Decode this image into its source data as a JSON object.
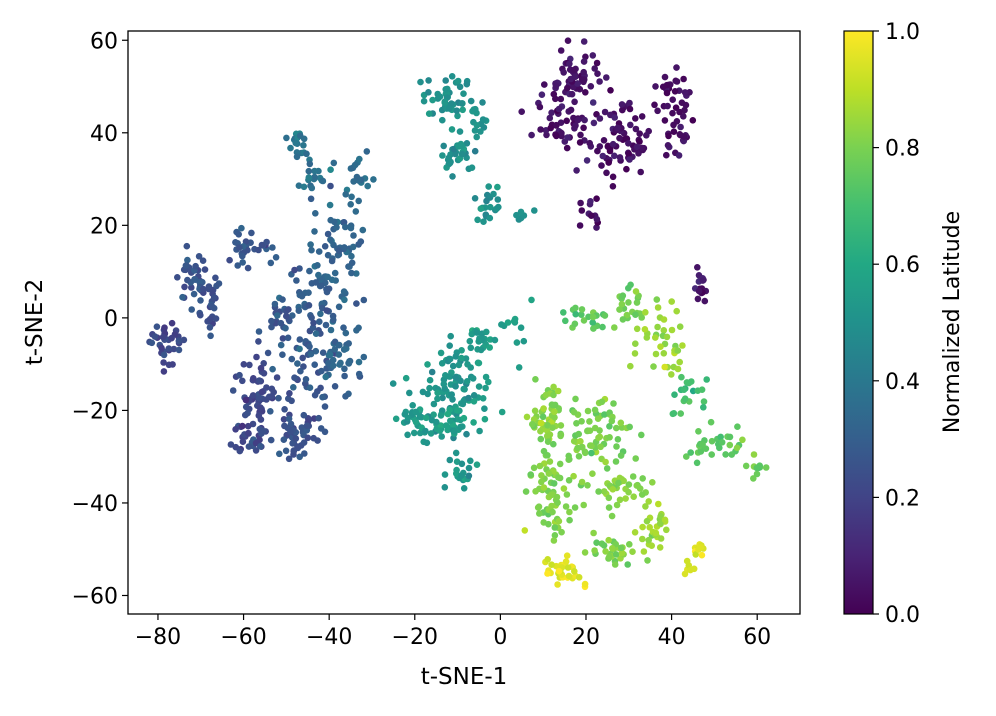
{
  "chart_data": {
    "type": "scatter",
    "title": "",
    "xlabel": "t-SNE-1",
    "ylabel": "t-SNE-2",
    "xlim": [
      -87,
      70
    ],
    "ylim": [
      -64,
      62
    ],
    "xticks": [
      -80,
      -60,
      -40,
      -20,
      0,
      20,
      40,
      60
    ],
    "yticks": [
      -60,
      -40,
      -20,
      0,
      20,
      40,
      60
    ],
    "grid": false,
    "colormap": "viridis",
    "colorbar": {
      "label": "Normalized Latitude",
      "range": [
        0.0,
        1.0
      ],
      "ticks": [
        0.0,
        0.2,
        0.4,
        0.6,
        0.8,
        1.0
      ]
    },
    "clusters": [
      {
        "x": -78,
        "y": -5,
        "sx": 2,
        "sy": 2.5,
        "n": 35,
        "c": 0.22
      },
      {
        "x": -72,
        "y": 8,
        "sx": 2,
        "sy": 3,
        "n": 35,
        "c": 0.25
      },
      {
        "x": -68,
        "y": 3,
        "sx": 1.5,
        "sy": 3,
        "n": 25,
        "c": 0.25
      },
      {
        "x": -60,
        "y": 15,
        "sx": 1.5,
        "sy": 3,
        "n": 20,
        "c": 0.28
      },
      {
        "x": -55,
        "y": 15,
        "sx": 1.5,
        "sy": 1.5,
        "n": 10,
        "c": 0.28
      },
      {
        "x": -48,
        "y": 39,
        "sx": 1,
        "sy": 1,
        "n": 10,
        "c": 0.38
      },
      {
        "x": -46,
        "y": 36,
        "sx": 1,
        "sy": 1.5,
        "n": 8,
        "c": 0.38
      },
      {
        "x": -43,
        "y": 30,
        "sx": 2,
        "sy": 2,
        "n": 20,
        "c": 0.38
      },
      {
        "x": -33,
        "y": 29,
        "sx": 2,
        "sy": 3,
        "n": 20,
        "c": 0.36
      },
      {
        "x": -38,
        "y": 15,
        "sx": 3,
        "sy": 6,
        "n": 60,
        "c": 0.32
      },
      {
        "x": -45,
        "y": 5,
        "sx": 4,
        "sy": 3,
        "n": 40,
        "c": 0.3
      },
      {
        "x": -52,
        "y": 0,
        "sx": 2,
        "sy": 2,
        "n": 20,
        "c": 0.26
      },
      {
        "x": -45,
        "y": -8,
        "sx": 4,
        "sy": 5,
        "n": 60,
        "c": 0.28
      },
      {
        "x": -38,
        "y": -8,
        "sx": 3,
        "sy": 4,
        "n": 40,
        "c": 0.32
      },
      {
        "x": -57,
        "y": -17,
        "sx": 3,
        "sy": 4,
        "n": 60,
        "c": 0.22
      },
      {
        "x": -58,
        "y": -25,
        "sx": 2,
        "sy": 2,
        "n": 25,
        "c": 0.22
      },
      {
        "x": -48,
        "y": -25,
        "sx": 3,
        "sy": 3,
        "n": 50,
        "c": 0.24
      },
      {
        "x": -12,
        "y": 47,
        "sx": 3,
        "sy": 3,
        "n": 50,
        "c": 0.5
      },
      {
        "x": -5,
        "y": 42,
        "sx": 1,
        "sy": 2,
        "n": 10,
        "c": 0.5
      },
      {
        "x": -10,
        "y": 35,
        "sx": 2,
        "sy": 2,
        "n": 30,
        "c": 0.5
      },
      {
        "x": -3,
        "y": 25,
        "sx": 1.5,
        "sy": 2,
        "n": 20,
        "c": 0.5
      },
      {
        "x": 4,
        "y": 22,
        "sx": 1.5,
        "sy": 1,
        "n": 6,
        "c": 0.5
      },
      {
        "x": -10,
        "y": -15,
        "sx": 4,
        "sy": 5,
        "n": 90,
        "c": 0.52
      },
      {
        "x": -20,
        "y": -22,
        "sx": 2,
        "sy": 2,
        "n": 25,
        "c": 0.54
      },
      {
        "x": -13,
        "y": -23,
        "sx": 3,
        "sy": 2,
        "n": 40,
        "c": 0.55
      },
      {
        "x": -5,
        "y": -5,
        "sx": 1.5,
        "sy": 2,
        "n": 20,
        "c": 0.55
      },
      {
        "x": -8,
        "y": -34,
        "sx": 2,
        "sy": 2,
        "n": 20,
        "c": 0.52
      },
      {
        "x": 4,
        "y": -3,
        "sx": 2,
        "sy": 3,
        "n": 12,
        "c": 0.55
      },
      {
        "x": 17,
        "y": 51,
        "sx": 3,
        "sy": 3,
        "n": 60,
        "c": 0.05
      },
      {
        "x": 14,
        "y": 42,
        "sx": 3,
        "sy": 2,
        "n": 40,
        "c": 0.05
      },
      {
        "x": 28,
        "y": 38,
        "sx": 4,
        "sy": 4,
        "n": 80,
        "c": 0.03
      },
      {
        "x": 40,
        "y": 49,
        "sx": 2,
        "sy": 3,
        "n": 30,
        "c": 0.03
      },
      {
        "x": 42,
        "y": 40,
        "sx": 2,
        "sy": 2,
        "n": 20,
        "c": 0.03
      },
      {
        "x": 21,
        "y": 22,
        "sx": 1.5,
        "sy": 2,
        "n": 12,
        "c": 0.04
      },
      {
        "x": 47,
        "y": 7,
        "sx": 1,
        "sy": 2,
        "n": 15,
        "c": 0.06
      },
      {
        "x": 20,
        "y": 0,
        "sx": 3,
        "sy": 2,
        "n": 20,
        "c": 0.75
      },
      {
        "x": 30,
        "y": 3,
        "sx": 3,
        "sy": 3,
        "n": 20,
        "c": 0.78
      },
      {
        "x": 38,
        "y": -5,
        "sx": 3,
        "sy": 5,
        "n": 40,
        "c": 0.85
      },
      {
        "x": 44,
        "y": -16,
        "sx": 2,
        "sy": 3,
        "n": 20,
        "c": 0.7
      },
      {
        "x": 50,
        "y": -27,
        "sx": 4,
        "sy": 2,
        "n": 30,
        "c": 0.75
      },
      {
        "x": 60,
        "y": -32,
        "sx": 1.5,
        "sy": 1,
        "n": 10,
        "c": 0.78
      },
      {
        "x": 11,
        "y": -22,
        "sx": 2,
        "sy": 4,
        "n": 50,
        "c": 0.82
      },
      {
        "x": 22,
        "y": -25,
        "sx": 4,
        "sy": 4,
        "n": 70,
        "c": 0.8
      },
      {
        "x": 12,
        "y": -38,
        "sx": 3,
        "sy": 4,
        "n": 70,
        "c": 0.8
      },
      {
        "x": 28,
        "y": -37,
        "sx": 3,
        "sy": 2,
        "n": 40,
        "c": 0.82
      },
      {
        "x": 36,
        "y": -46,
        "sx": 2,
        "sy": 3,
        "n": 30,
        "c": 0.85
      },
      {
        "x": 25,
        "y": -50,
        "sx": 3,
        "sy": 2,
        "n": 30,
        "c": 0.8
      },
      {
        "x": 15,
        "y": -55,
        "sx": 2,
        "sy": 1.5,
        "n": 30,
        "c": 0.96
      },
      {
        "x": 47,
        "y": -50,
        "sx": 1,
        "sy": 1,
        "n": 10,
        "c": 0.95
      },
      {
        "x": 44,
        "y": -54,
        "sx": 1,
        "sy": 1,
        "n": 6,
        "c": 0.95
      }
    ]
  }
}
